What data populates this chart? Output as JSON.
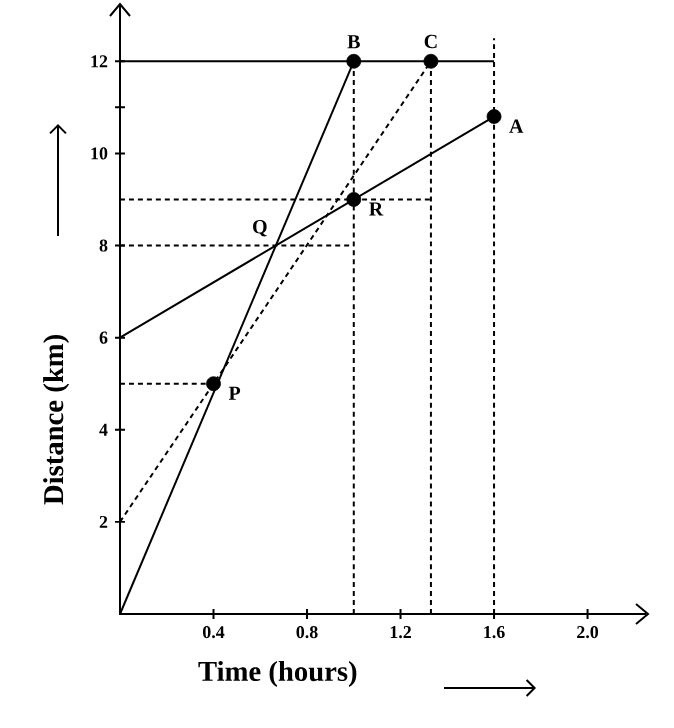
{
  "chart_data": {
    "type": "line",
    "xlabel": "Time (hours)",
    "ylabel": "Distance (km)",
    "xlim": [
      0,
      2.25
    ],
    "ylim": [
      0,
      13.2
    ],
    "xticks": [
      0.4,
      0.8,
      1.2,
      1.6,
      {
        "value": 2,
        "label": "2.0"
      }
    ],
    "yticks": [
      2,
      4,
      6,
      8,
      10,
      {
        "value": 11,
        "label": null
      },
      12
    ],
    "grid": false,
    "marker": "none",
    "series": [
      {
        "color": "#000000",
        "x": [
          0,
          1.0
        ],
        "values": [
          0,
          12
        ],
        "line_style": "solid"
      },
      {
        "color": "#000000",
        "x": [
          0,
          1.6
        ],
        "values": [
          6,
          10.8
        ],
        "line_style": "solid"
      },
      {
        "color": "#000000",
        "x": [
          0,
          1.6
        ],
        "values": [
          12,
          12
        ],
        "line_style": "solid"
      },
      {
        "color": "#000000",
        "x": [
          0,
          0.4,
          1.33
        ],
        "values": [
          2,
          5,
          12
        ],
        "line_style": "dashed"
      },
      {
        "color": "#000000",
        "x": [
          0,
          1.33
        ],
        "values": [
          9,
          9
        ],
        "line_style": "dashed"
      },
      {
        "color": "#000000",
        "x": [
          0,
          1.0
        ],
        "values": [
          8,
          8
        ],
        "line_style": "dashed"
      },
      {
        "color": "#000000",
        "x": [
          0,
          0.4
        ],
        "values": [
          5,
          5
        ],
        "line_style": "dashed"
      },
      {
        "color": "#000000",
        "x": [
          1.0,
          1.0
        ],
        "values": [
          0,
          12
        ],
        "line_style": "dashed"
      },
      {
        "color": "#000000",
        "x": [
          1.33,
          1.33
        ],
        "values": [
          0,
          12
        ],
        "line_style": "dashed"
      },
      {
        "color": "#000000",
        "x": [
          1.6,
          1.6
        ],
        "values": [
          0,
          12.5
        ],
        "line_style": "dashed"
      },
      {
        "type": "scatter",
        "marker": "circle",
        "color": "#000000",
        "x": [
          0.4,
          1.0,
          1.0,
          1.33,
          1.6
        ],
        "values": [
          5,
          9,
          12,
          12,
          10.8
        ]
      }
    ],
    "annotations": [
      {
        "text": "P",
        "x": 0.4,
        "y": 5
      },
      {
        "text": "Q",
        "x": 0.67,
        "y": 8
      },
      {
        "text": "R",
        "x": 1.0,
        "y": 9
      },
      {
        "text": "B",
        "x": 1.0,
        "y": 12
      },
      {
        "text": "C",
        "x": 1.33,
        "y": 12
      },
      {
        "text": "A",
        "x": 1.6,
        "y": 10.8
      }
    ]
  }
}
